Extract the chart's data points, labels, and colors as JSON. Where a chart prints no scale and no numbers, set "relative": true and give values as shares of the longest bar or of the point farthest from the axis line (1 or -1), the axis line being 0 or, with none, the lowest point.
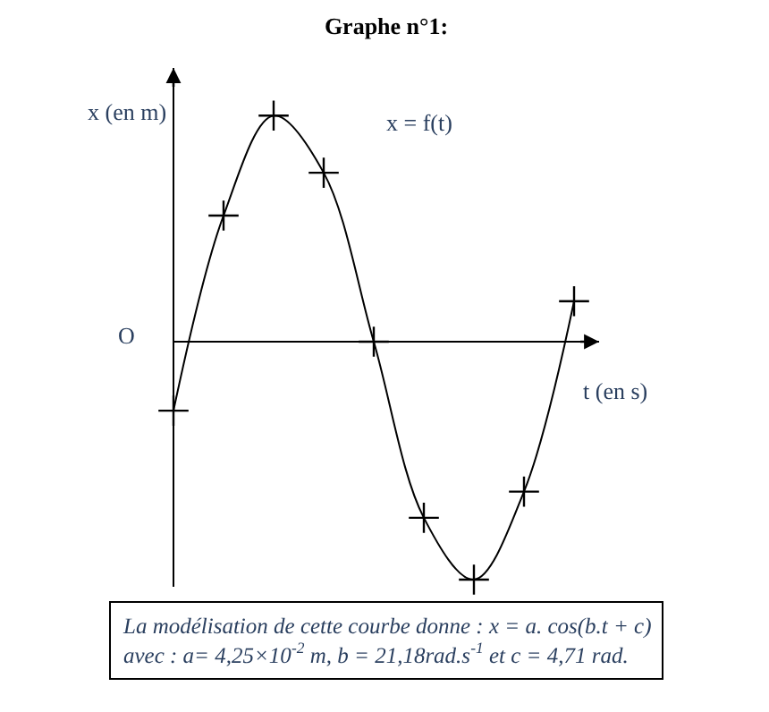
{
  "chart_data": {
    "type": "line",
    "title": "Graphe n°1:",
    "xlabel": "t (en s)",
    "ylabel": "x (en m)",
    "relative": true,
    "marker": "cross",
    "categories": [
      null,
      null,
      null,
      null,
      null,
      null,
      null,
      null,
      null
    ],
    "series": [
      {
        "color": "#000000",
        "values": [
          -0.29,
          0.53,
          0.95,
          0.71,
          0,
          -0.74,
          -1,
          -0.63,
          0.17
        ]
      }
    ],
    "annotations": [
      "x = f(t)",
      "O",
      "La modélisation de cette courbe donne : x = a. cos(b.t + c)\navec : a= 4,25×10$^{-2}$ m, b = 21,18rad.s$^{-1}$ et c = 4,71 rad."
    ]
  }
}
